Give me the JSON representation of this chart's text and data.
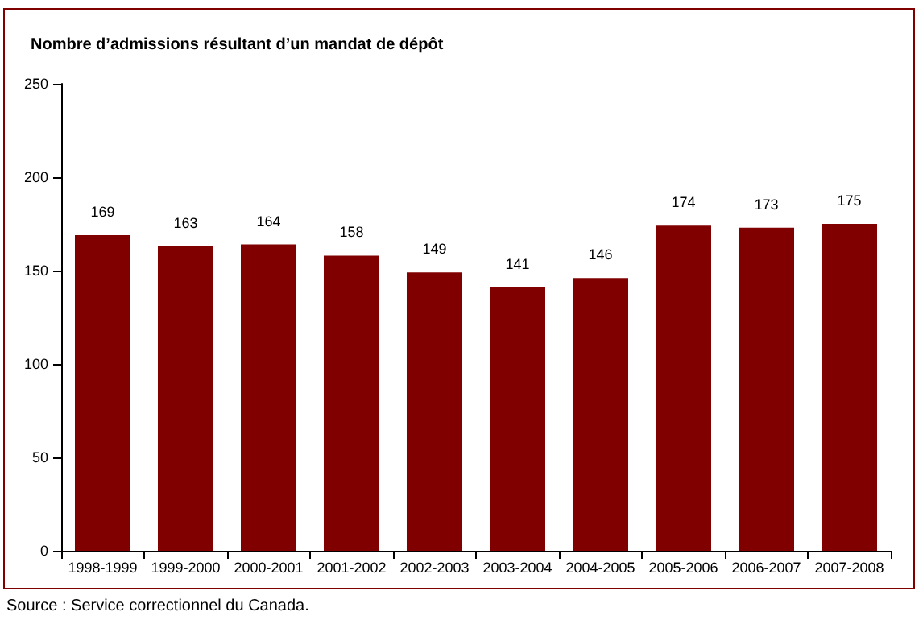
{
  "chart_data": {
    "type": "bar",
    "title": "Nombre d’admissions résultant d’un mandat de dépôt",
    "categories": [
      "1998-1999",
      "1999-2000",
      "2000-2001",
      "2001-2002",
      "2002-2003",
      "2003-2004",
      "2004-2005",
      "2005-2006",
      "2006-2007",
      "2007-2008"
    ],
    "values": [
      169,
      163,
      164,
      158,
      149,
      141,
      146,
      174,
      173,
      175
    ],
    "color": "#800000",
    "ylim": [
      0,
      250
    ],
    "yticks": [
      0,
      50,
      100,
      150,
      200,
      250
    ],
    "data_labels": true,
    "annotations": [
      "Source : Service correctionnel du Canada."
    ]
  }
}
